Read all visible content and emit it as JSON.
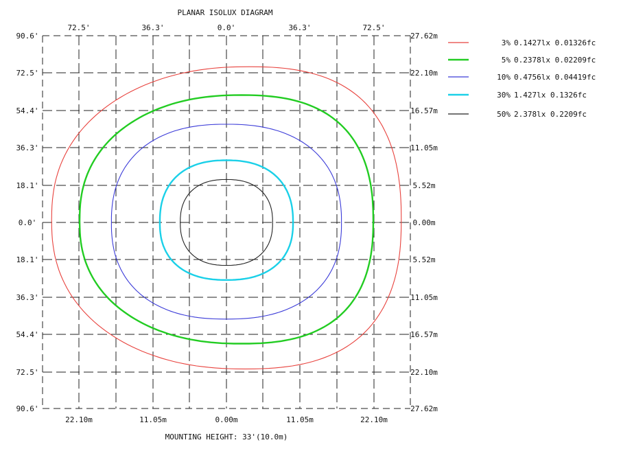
{
  "chart_data": {
    "type": "isolux_contour",
    "title": "PLANAR ISOLUX DIAGRAM",
    "xlabel": "MOUNTING HEIGHT: 33'(10.0m)",
    "top_ticks": [
      "72.5'",
      "36.3'",
      "0.0'",
      "36.3'",
      "72.5'"
    ],
    "bottom_ticks": [
      "22.10m",
      "11.05m",
      "0.00m",
      "11.05m",
      "22.10m"
    ],
    "left_ticks": [
      "90.6'",
      "72.5'",
      "54.4'",
      "36.3'",
      "18.1'",
      "0.0'",
      "18.1'",
      "36.3'",
      "54.4'",
      "72.5'",
      "90.6'"
    ],
    "right_ticks": [
      "27.62m",
      "22.10m",
      "16.57m",
      "11.05m",
      "5.52m",
      "0.00m",
      "5.52m",
      "11.05m",
      "16.57m",
      "22.10m",
      "27.62m"
    ],
    "grid": true,
    "xlim_m": [
      -24.3,
      24.3
    ],
    "ylim_m": [
      -24.3,
      24.3
    ],
    "series": [
      {
        "name": "3% 0.1427lx 0.01326fc",
        "percent": "3%",
        "lux": "0.1427lx",
        "fc": "0.01326fc",
        "color": "#e8413c",
        "contour_m": {
          "cx": 0.0,
          "cy": 0.3,
          "half_width": 23.1,
          "half_height_top": 20.0,
          "half_height_bottom": 19.4,
          "top_offset": 3.0,
          "bottom_offset": 2.5
        }
      },
      {
        "name": "5% 0.2378lx 0.02209fc",
        "percent": "5%",
        "lux": "0.2378lx",
        "fc": "0.02209fc",
        "color": "#22cc22",
        "contour_m": {
          "cx": 0.0,
          "cy": 0.2,
          "half_width": 19.4,
          "half_height_top": 16.4,
          "half_height_bottom": 16.0,
          "top_offset": 2.0,
          "bottom_offset": 2.0
        }
      },
      {
        "name": "10% 0.4756lx 0.04419fc",
        "percent": "10%",
        "lux": "0.4756lx",
        "fc": "0.04419fc",
        "color": "#3a3ad8",
        "contour_m": {
          "cx": 0.0,
          "cy": 0.0,
          "half_width": 15.2,
          "half_height_top": 12.8,
          "half_height_bottom": 12.6,
          "top_offset": 0.0,
          "bottom_offset": 0.0
        }
      },
      {
        "name": "30% 1.427lx 0.1326fc",
        "percent": "30%",
        "lux": "1.427lx",
        "fc": "0.1326fc",
        "color": "#1ad0e8",
        "contour_m": {
          "cx": 0.0,
          "cy": 0.0,
          "half_width": 8.8,
          "half_height_top": 8.1,
          "half_height_bottom": 7.5,
          "top_offset": 0.0,
          "bottom_offset": 0.0
        }
      },
      {
        "name": "50% 2.378lx 0.2209fc",
        "percent": "50%",
        "lux": "2.378lx",
        "fc": "0.2209fc",
        "color": "#222222",
        "contour_m": {
          "cx": 0.0,
          "cy": 0.0,
          "half_width": 6.1,
          "half_height_top": 5.6,
          "half_height_bottom": 5.6,
          "top_offset": 0.0,
          "bottom_offset": 0.0
        }
      }
    ]
  }
}
